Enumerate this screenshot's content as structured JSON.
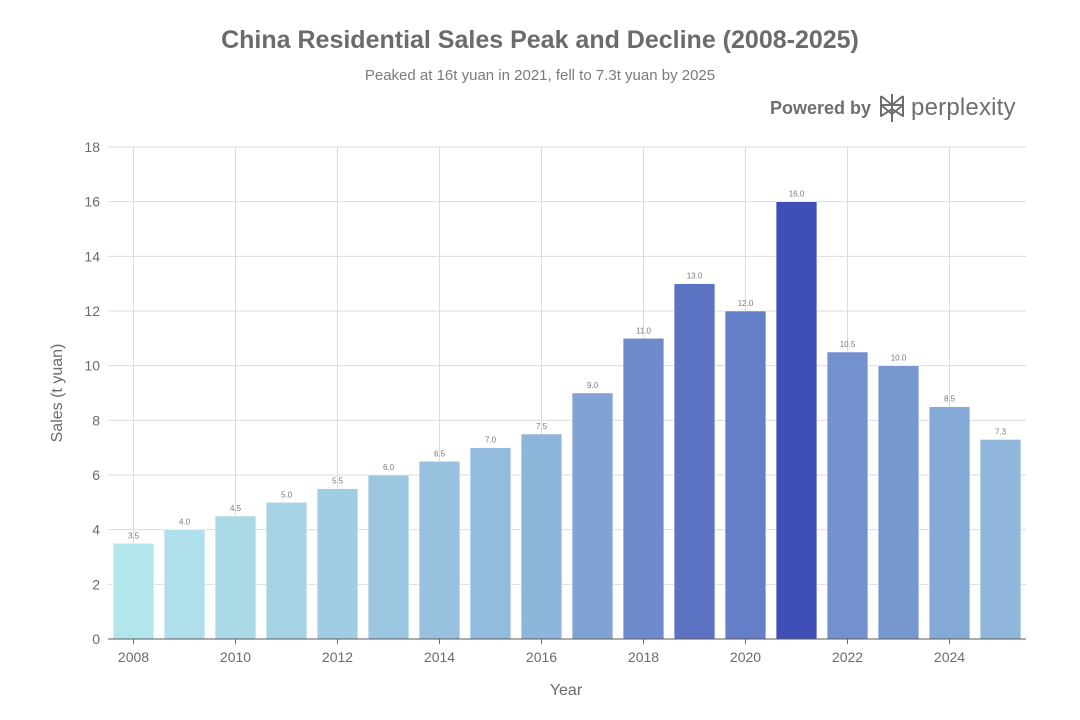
{
  "header": {
    "title": "China Residential Sales Peak and Decline (2008-2025)",
    "subtitle": "Peaked at 16t yuan in 2021, fell to 7.3t yuan by 2025"
  },
  "brand": {
    "prefix": "Powered by",
    "name": "perplexity",
    "icon": "perplexity-logo-icon"
  },
  "chart_data": {
    "type": "bar",
    "title": "China Residential Sales Peak and Decline (2008-2025)",
    "subtitle": "Peaked at 16t yuan in 2021, fell to 7.3t yuan by 2025",
    "xlabel": "Year",
    "ylabel": "Sales (t yuan)",
    "categories": [
      "2008",
      "2009",
      "2010",
      "2011",
      "2012",
      "2013",
      "2014",
      "2015",
      "2016",
      "2017",
      "2018",
      "2019",
      "2020",
      "2021",
      "2022",
      "2023",
      "2024",
      "2025"
    ],
    "values": [
      3.5,
      4.0,
      4.5,
      5.0,
      5.5,
      6.0,
      6.5,
      7.0,
      7.5,
      9.0,
      11.0,
      13.0,
      12.0,
      16.0,
      10.5,
      10.0,
      8.5,
      7.3
    ],
    "data_labels": [
      "3.5",
      "4.0",
      "4.5",
      "5.0",
      "5.5",
      "6.0",
      "6.5",
      "7.0",
      "7.5",
      "9.0",
      "11.0",
      "13.0",
      "12.0",
      "16.0",
      "10.5",
      "10.0",
      "8.5",
      "7.3"
    ],
    "x_ticks": [
      "2008",
      "2010",
      "2012",
      "2014",
      "2016",
      "2018",
      "2020",
      "2022",
      "2024"
    ],
    "y_ticks": [
      "0",
      "2",
      "4",
      "6",
      "8",
      "10",
      "12",
      "14",
      "16",
      "18"
    ],
    "ylim": [
      0,
      18
    ],
    "grid": true,
    "colorscale": [
      "#b3e5ec",
      "#3f4fb5"
    ]
  }
}
